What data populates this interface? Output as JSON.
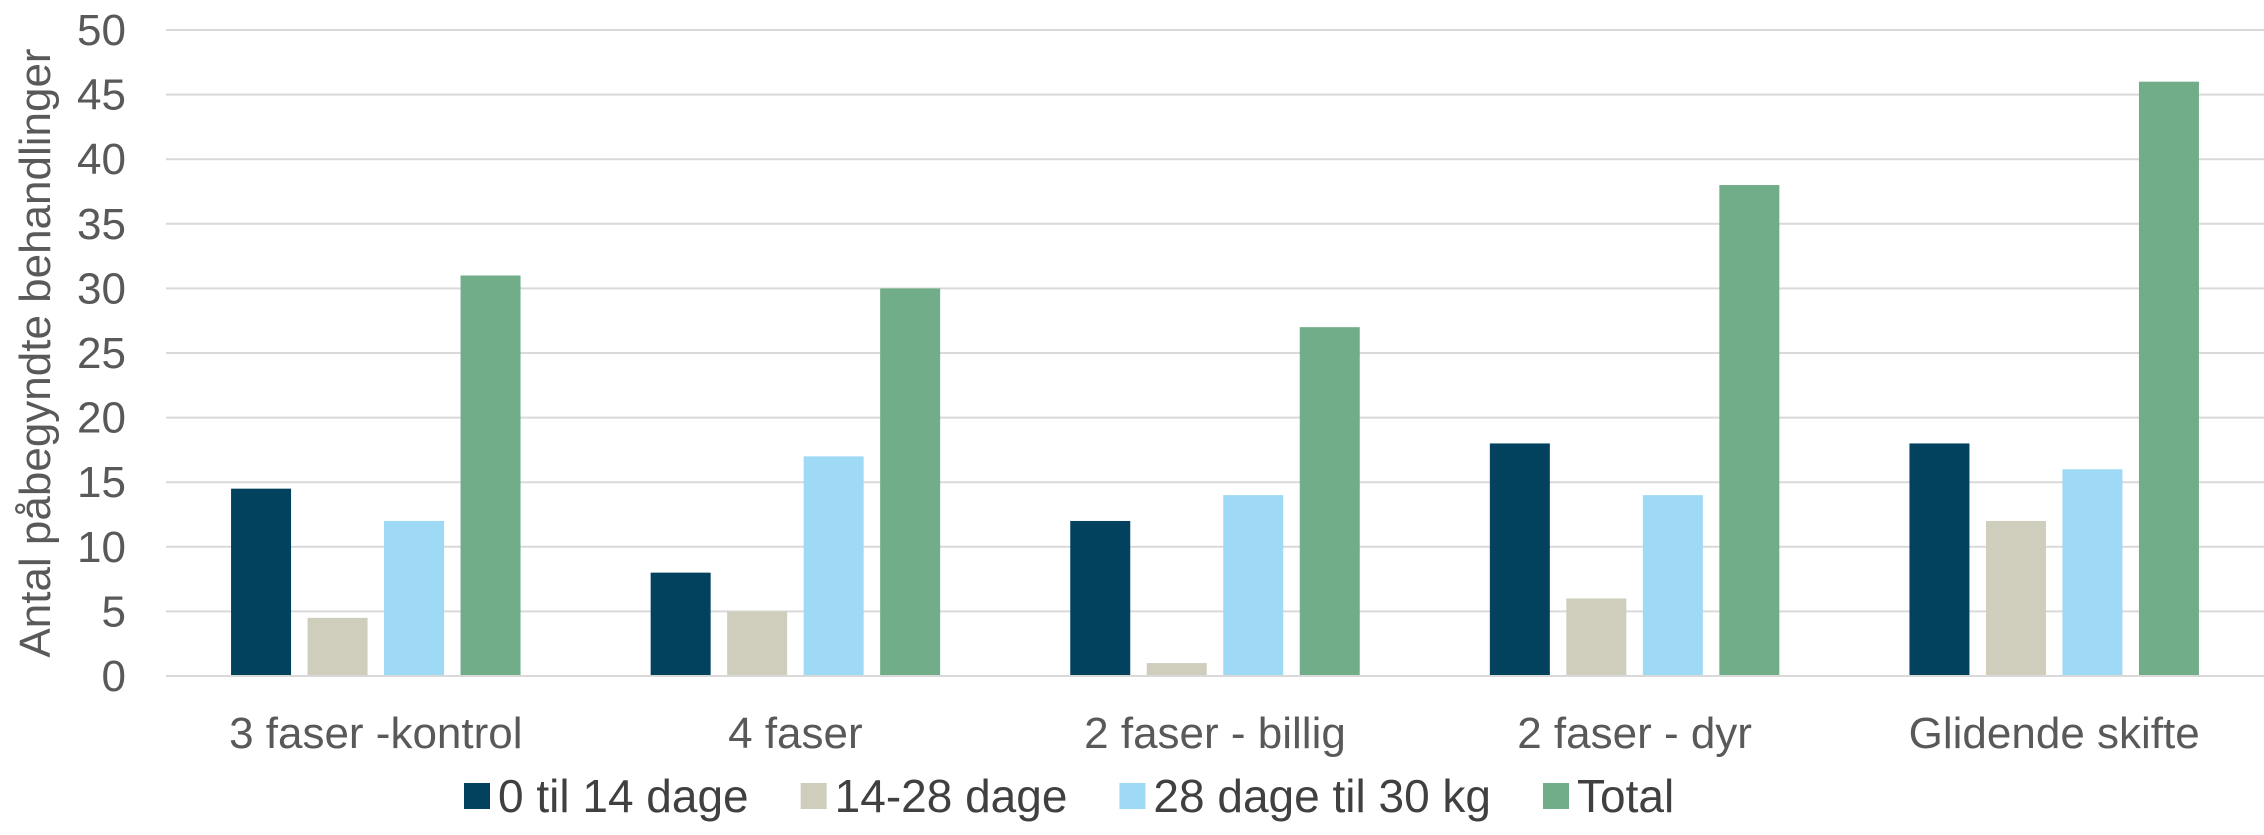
{
  "chart_data": {
    "type": "bar",
    "title": "",
    "xlabel": "",
    "ylabel": "Antal påbegyndte behandlinger",
    "ylim": [
      0,
      50
    ],
    "yticks": [
      0,
      5,
      10,
      15,
      20,
      25,
      30,
      35,
      40,
      45,
      50
    ],
    "grid": true,
    "legend_position": "bottom",
    "categories": [
      "3 faser -kontrol",
      "4 faser",
      "2 faser - billig",
      "2 faser - dyr",
      "Glidende skifte"
    ],
    "series": [
      {
        "name": "0 til 14 dage",
        "color": "#02425f",
        "values": [
          14.5,
          8,
          12,
          18,
          18
        ]
      },
      {
        "name": "14-28 dage",
        "color": "#cfcdbc",
        "values": [
          4.5,
          5,
          1,
          6,
          12
        ]
      },
      {
        "name": "28 dage til 30 kg",
        "color": "#9ed9f6",
        "values": [
          12,
          17,
          14,
          14,
          16
        ]
      },
      {
        "name": "Total",
        "color": "#71ad89",
        "values": [
          31,
          30,
          27,
          38,
          46
        ]
      }
    ]
  }
}
